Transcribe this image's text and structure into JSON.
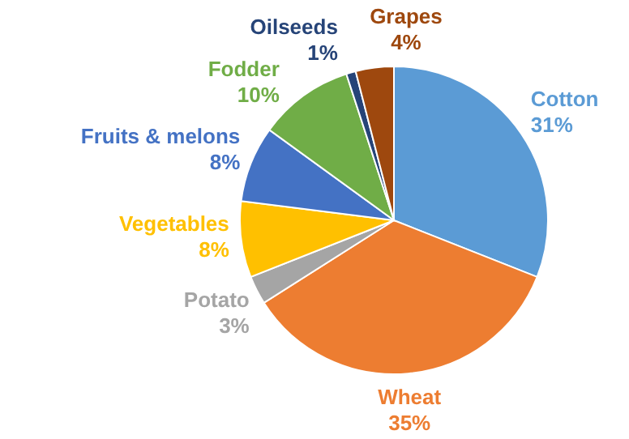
{
  "chart_data": {
    "type": "pie",
    "categories": [
      "Cotton",
      "Wheat",
      "Potato",
      "Vegetables",
      "Fruits & melons",
      "Fodder",
      "Oilseeds",
      "Grapes"
    ],
    "values": [
      31,
      35,
      3,
      8,
      8,
      10,
      1,
      4
    ],
    "value_labels": [
      "31%",
      "35%",
      "3%",
      "8%",
      "8%",
      "10%",
      "1%",
      "4%"
    ],
    "colors": [
      "#5b9bd5",
      "#ed7d31",
      "#a5a5a5",
      "#ffc000",
      "#4472c4",
      "#70ad47",
      "#264478",
      "#9e480e"
    ]
  }
}
